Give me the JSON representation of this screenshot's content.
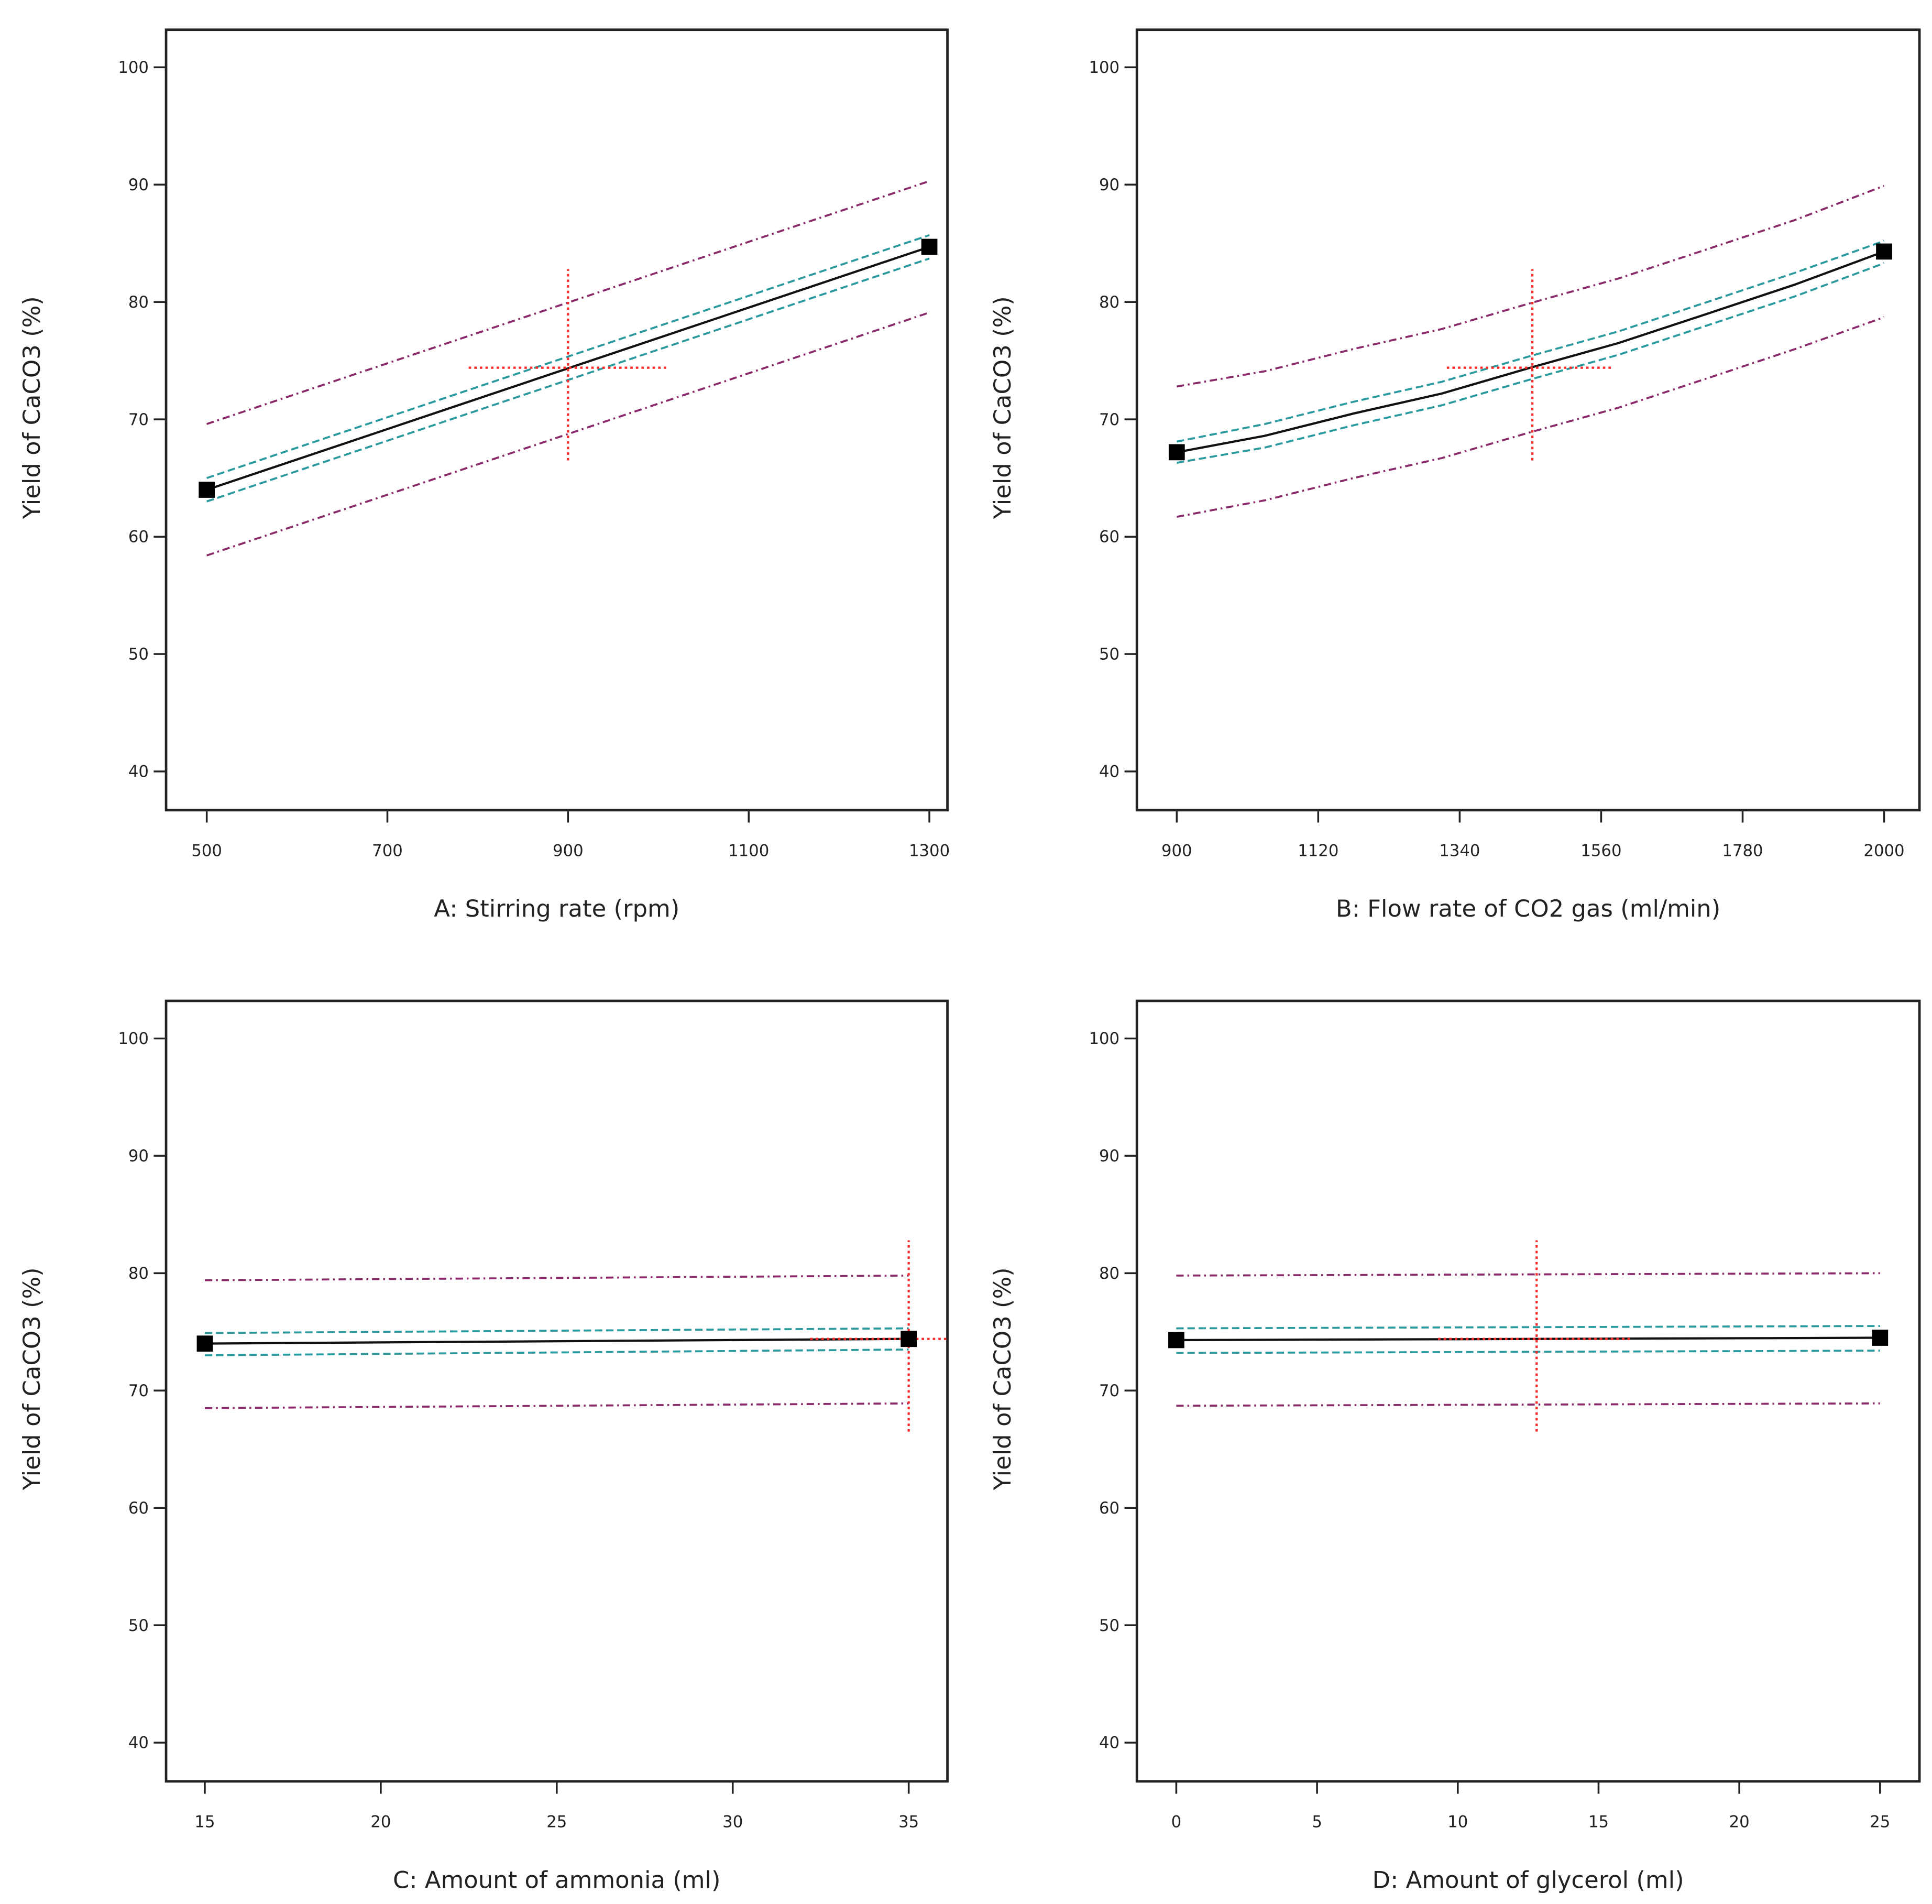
{
  "chart_data": [
    {
      "type": "line",
      "title": "",
      "xlabel": "A: Stirring rate (rpm)",
      "ylabel": "Yield of CaCO3 (%)",
      "xlim": [
        455,
        1320
      ],
      "ylim": [
        36.7,
        103.2
      ],
      "xticks": [
        500,
        700,
        900,
        1100,
        1300
      ],
      "yticks": [
        40,
        50,
        60,
        70,
        80,
        90,
        100
      ],
      "grid": false,
      "x": [
        500,
        1300
      ],
      "series": [
        {
          "name": "prediction",
          "values": [
            64.0,
            84.7
          ]
        },
        {
          "name": "ci_upper",
          "values": [
            65.0,
            85.7
          ]
        },
        {
          "name": "ci_lower",
          "values": [
            63.0,
            83.7
          ]
        },
        {
          "name": "pi_upper",
          "values": [
            69.6,
            90.3
          ]
        },
        {
          "name": "pi_lower",
          "values": [
            58.4,
            79.1
          ]
        }
      ],
      "design_points": [
        [
          500,
          64.0
        ],
        [
          1300,
          84.7
        ]
      ],
      "current_point": {
        "x": 900,
        "y": 74.4,
        "y_range": [
          66.5,
          82.8
        ],
        "x_range": [
          790,
          1010
        ]
      }
    },
    {
      "type": "line",
      "title": "",
      "xlabel": "B: Flow rate of CO2 gas (ml/min)",
      "ylabel": "Yield of CaCO3 (%)",
      "xlim": [
        838,
        2055
      ],
      "ylim": [
        36.7,
        103.2
      ],
      "xticks": [
        900,
        1120,
        1340,
        1560,
        1780,
        2000
      ],
      "yticks": [
        40,
        50,
        60,
        70,
        80,
        90,
        100
      ],
      "grid": false,
      "x": [
        900,
        1037,
        1175,
        1312,
        1450,
        1587,
        1725,
        1862,
        2000
      ],
      "series": [
        {
          "name": "prediction",
          "values": [
            67.2,
            68.6,
            70.5,
            72.2,
            74.4,
            76.5,
            79.0,
            81.5,
            84.3
          ]
        },
        {
          "name": "ci_upper",
          "values": [
            68.1,
            69.6,
            71.5,
            73.2,
            75.4,
            77.5,
            80.0,
            82.5,
            85.2
          ]
        },
        {
          "name": "ci_lower",
          "values": [
            66.3,
            67.6,
            69.5,
            71.2,
            73.4,
            75.5,
            78.0,
            80.5,
            83.3
          ]
        },
        {
          "name": "pi_upper",
          "values": [
            72.8,
            74.1,
            76.0,
            77.7,
            79.9,
            82.0,
            84.5,
            87.0,
            89.9
          ]
        },
        {
          "name": "pi_lower",
          "values": [
            61.7,
            63.1,
            65.0,
            66.7,
            68.9,
            71.0,
            73.5,
            76.0,
            78.7
          ]
        }
      ],
      "design_points": [
        [
          900,
          67.2
        ],
        [
          2000,
          84.3
        ]
      ],
      "current_point": {
        "x": 1453,
        "y": 74.4,
        "y_range": [
          66.5,
          82.8
        ],
        "x_range": [
          1320,
          1580
        ]
      }
    },
    {
      "type": "line",
      "title": "",
      "xlabel": "C: Amount of ammonia (ml)",
      "ylabel": "Yield of CaCO3 (%)",
      "xlim": [
        13.9,
        36.1
      ],
      "ylim": [
        36.7,
        103.2
      ],
      "xticks": [
        15,
        20,
        25,
        30,
        35
      ],
      "yticks": [
        40,
        50,
        60,
        70,
        80,
        90,
        100
      ],
      "grid": false,
      "x": [
        15,
        35
      ],
      "series": [
        {
          "name": "prediction",
          "values": [
            74.0,
            74.4
          ]
        },
        {
          "name": "ci_upper",
          "values": [
            74.9,
            75.3
          ]
        },
        {
          "name": "ci_lower",
          "values": [
            73.0,
            73.5
          ]
        },
        {
          "name": "pi_upper",
          "values": [
            79.4,
            79.8
          ]
        },
        {
          "name": "pi_lower",
          "values": [
            68.5,
            68.9
          ]
        }
      ],
      "design_points": [
        [
          15,
          74.0
        ],
        [
          35,
          74.4
        ]
      ],
      "current_point": {
        "x": 35,
        "y": 74.4,
        "y_range": [
          66.5,
          82.8
        ],
        "x_range": [
          32.2,
          36.1
        ]
      }
    },
    {
      "type": "line",
      "title": "",
      "xlabel": "D: Amount of glycerol (ml)",
      "ylabel": "Yield of CaCO3 (%)",
      "xlim": [
        -1.4,
        26.4
      ],
      "ylim": [
        36.7,
        103.2
      ],
      "xticks": [
        0,
        5,
        10,
        15,
        20,
        25
      ],
      "yticks": [
        40,
        50,
        60,
        70,
        80,
        90,
        100
      ],
      "grid": false,
      "x": [
        0,
        25
      ],
      "series": [
        {
          "name": "prediction",
          "values": [
            74.3,
            74.5
          ]
        },
        {
          "name": "ci_upper",
          "values": [
            75.3,
            75.5
          ]
        },
        {
          "name": "ci_lower",
          "values": [
            73.2,
            73.4
          ]
        },
        {
          "name": "pi_upper",
          "values": [
            79.8,
            80.0
          ]
        },
        {
          "name": "pi_lower",
          "values": [
            68.7,
            68.9
          ]
        }
      ],
      "design_points": [
        [
          0,
          74.3
        ],
        [
          25,
          74.5
        ]
      ],
      "current_point": {
        "x": 12.8,
        "y": 74.4,
        "y_range": [
          66.5,
          82.8
        ],
        "x_range": [
          9.3,
          16.2
        ]
      }
    }
  ],
  "colors": {
    "prediction": "#111111",
    "ci": "#2a9a9f",
    "pi": "#8a2a6a",
    "current": "#ff2a2a",
    "frame": "#222222"
  }
}
